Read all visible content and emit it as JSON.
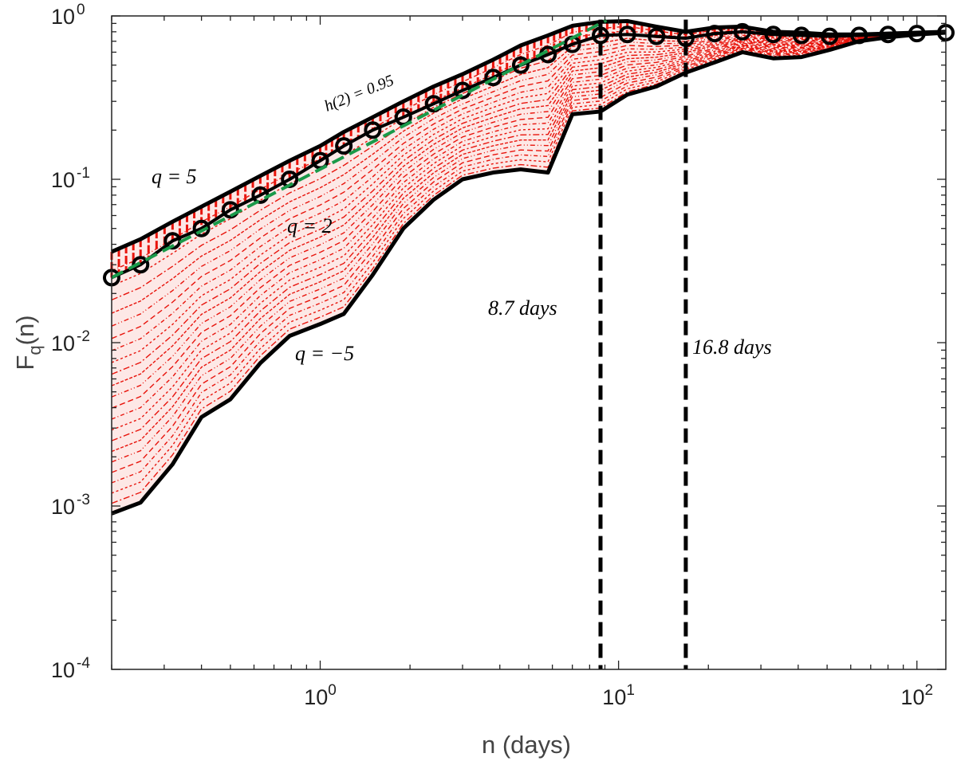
{
  "chart_data": {
    "type": "line",
    "title": "",
    "xlabel": "n (days)",
    "ylabel_base": "F",
    "ylabel_sub": "q",
    "ylabel_tail": "(n)",
    "xscale": "log",
    "yscale": "log",
    "xlim": [
      0.2,
      125
    ],
    "ylim": [
      0.0001,
      1
    ],
    "x_ticks": [
      {
        "value": 1,
        "base": "10",
        "exp": "0"
      },
      {
        "value": 10,
        "base": "10",
        "exp": "1"
      },
      {
        "value": 100,
        "base": "10",
        "exp": "2"
      }
    ],
    "y_ticks": [
      {
        "value": 0.0001,
        "base": "10",
        "exp": "-4"
      },
      {
        "value": 0.001,
        "base": "10",
        "exp": "-3"
      },
      {
        "value": 0.01,
        "base": "10",
        "exp": "-2"
      },
      {
        "value": 0.1,
        "base": "10",
        "exp": "-1"
      },
      {
        "value": 1,
        "base": "10",
        "exp": "0"
      }
    ],
    "x": [
      0.2,
      0.25,
      0.32,
      0.4,
      0.5,
      0.63,
      0.79,
      1.0,
      1.2,
      1.5,
      1.9,
      2.4,
      3.0,
      3.8,
      4.7,
      5.8,
      7.0,
      8.7,
      10.7,
      13.4,
      16.8,
      21,
      26,
      33,
      41,
      51,
      64,
      80,
      100,
      125
    ],
    "series": [
      {
        "name": "q = 5",
        "values": [
          0.036,
          0.043,
          0.055,
          0.068,
          0.084,
          0.105,
          0.13,
          0.16,
          0.195,
          0.24,
          0.3,
          0.37,
          0.44,
          0.54,
          0.66,
          0.76,
          0.87,
          0.92,
          0.93,
          0.86,
          0.8,
          0.85,
          0.86,
          0.8,
          0.79,
          0.77,
          0.77,
          0.78,
          0.79,
          0.8
        ]
      },
      {
        "name": "q = 2",
        "values": [
          0.025,
          0.03,
          0.042,
          0.05,
          0.065,
          0.08,
          0.1,
          0.13,
          0.16,
          0.2,
          0.24,
          0.29,
          0.35,
          0.42,
          0.5,
          0.58,
          0.67,
          0.76,
          0.77,
          0.75,
          0.73,
          0.78,
          0.8,
          0.77,
          0.76,
          0.75,
          0.76,
          0.77,
          0.78,
          0.79
        ]
      },
      {
        "name": "q = -5",
        "values": [
          0.0009,
          0.00105,
          0.0018,
          0.0035,
          0.0045,
          0.0075,
          0.011,
          0.013,
          0.015,
          0.026,
          0.05,
          0.075,
          0.1,
          0.11,
          0.115,
          0.11,
          0.25,
          0.26,
          0.33,
          0.37,
          0.45,
          0.52,
          0.6,
          0.55,
          0.56,
          0.62,
          0.7,
          0.74,
          0.77,
          0.79
        ]
      }
    ],
    "fit_line": {
      "label": "h(2) = 0.95",
      "slope": 0.95,
      "x_start": 0.2,
      "y_start": 0.025,
      "x_end": 9.1
    },
    "vlines": [
      {
        "value": 8.7,
        "label": "8.7 days"
      },
      {
        "value": 16.8,
        "label": "16.8 days"
      }
    ],
    "annotations": {
      "q5": "q = 5",
      "q2": "q = 2",
      "qm5": "q = −5"
    },
    "colors": {
      "band": "#e8140c",
      "axis": "#222222",
      "fit": "#1a9a4a",
      "curve": "#000000",
      "marker": "#000000"
    }
  }
}
